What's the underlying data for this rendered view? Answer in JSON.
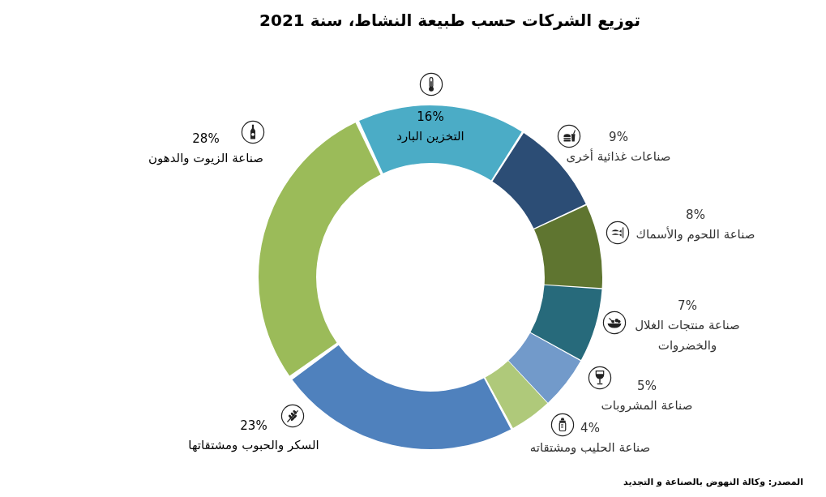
{
  "chart_data": {
    "type": "donut",
    "title": "توزيع الشركات حسب طبيعة النشاط، سنة 2021",
    "categories": [
      "التخزين البارد",
      "صناعات غذائية أخرى",
      "صناعة اللحوم والأسماك",
      "صناعة منتجات الغلال والخضروات",
      "صناعة المشروبات",
      "صناعة الحليب ومشتقاته",
      "السكر والحبوب ومشتقاتها",
      "صناعة الزيوت والدهون"
    ],
    "values": [
      16,
      9,
      8,
      7,
      5,
      4,
      23,
      28
    ],
    "colors": [
      "#4bacc6",
      "#2c4d75",
      "#5f7530",
      "#276a7b",
      "#729aca",
      "#afc97a",
      "#4f81bd",
      "#9bbb59"
    ],
    "value_labels": [
      "16%",
      "9%",
      "8%",
      "7%",
      "5%",
      "4%",
      "23%",
      "28%"
    ],
    "annotations": [
      "المصدر: وكالة النهوض بالصناعة و التجديد"
    ]
  }
}
